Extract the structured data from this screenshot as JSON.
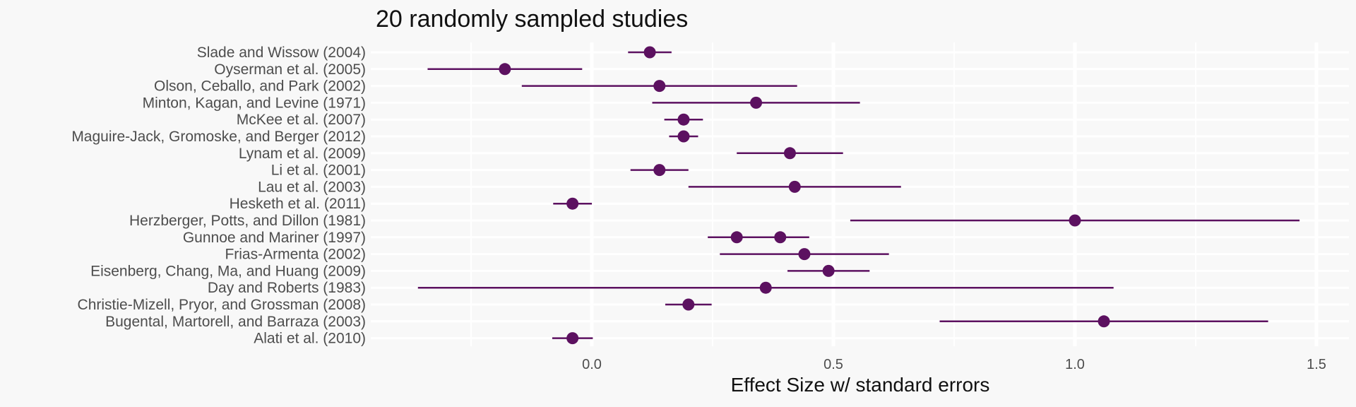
{
  "chart_data": {
    "type": "forest",
    "title": "20 randomly sampled studies",
    "xlabel": "Effect Size w/ standard errors",
    "ylabel": "",
    "xlim": [
      -0.47,
      1.57
    ],
    "xticks": [
      0.0,
      0.5,
      1.0,
      1.5
    ],
    "xtick_labels": [
      "0.0",
      "0.5",
      "1.0",
      "1.5"
    ],
    "grid": true,
    "color": "#5c1160",
    "studies": [
      {
        "label": "Slade and Wissow (2004)",
        "estimates": [
          {
            "value": 0.12,
            "low": 0.075,
            "high": 0.165
          }
        ]
      },
      {
        "label": "Oyserman et al. (2005)",
        "estimates": [
          {
            "value": -0.18,
            "low": -0.34,
            "high": -0.02
          }
        ]
      },
      {
        "label": "Olson, Ceballo, and Park (2002)",
        "estimates": [
          {
            "value": 0.14,
            "low": -0.145,
            "high": 0.425
          }
        ]
      },
      {
        "label": "Minton, Kagan, and Levine (1971)",
        "estimates": [
          {
            "value": 0.34,
            "low": 0.125,
            "high": 0.555
          }
        ]
      },
      {
        "label": "McKee et al. (2007)",
        "estimates": [
          {
            "value": 0.19,
            "low": 0.15,
            "high": 0.23
          }
        ]
      },
      {
        "label": "Maguire-Jack, Gromoske, and Berger (2012)",
        "estimates": [
          {
            "value": 0.19,
            "low": 0.16,
            "high": 0.22
          }
        ]
      },
      {
        "label": "Lynam et al. (2009)",
        "estimates": [
          {
            "value": 0.41,
            "low": 0.3,
            "high": 0.52
          }
        ]
      },
      {
        "label": "Li et al. (2001)",
        "estimates": [
          {
            "value": 0.14,
            "low": 0.08,
            "high": 0.2
          }
        ]
      },
      {
        "label": "Lau et al. (2003)",
        "estimates": [
          {
            "value": 0.42,
            "low": 0.2,
            "high": 0.64
          }
        ]
      },
      {
        "label": "Hesketh et al. (2011)",
        "estimates": [
          {
            "value": -0.04,
            "low": -0.08,
            "high": 0.0
          }
        ]
      },
      {
        "label": "Herzberger, Potts, and Dillon (1981)",
        "estimates": [
          {
            "value": 1.0,
            "low": 0.535,
            "high": 1.465
          }
        ]
      },
      {
        "label": "Gunnoe and Mariner (1997)",
        "estimates": [
          {
            "value": 0.3,
            "low": 0.24,
            "high": 0.36
          },
          {
            "value": 0.39,
            "low": 0.33,
            "high": 0.45
          }
        ]
      },
      {
        "label": "Frias-Armenta (2002)",
        "estimates": [
          {
            "value": 0.44,
            "low": 0.265,
            "high": 0.615
          }
        ]
      },
      {
        "label": "Eisenberg, Chang, Ma, and Huang (2009)",
        "estimates": [
          {
            "value": 0.49,
            "low": 0.405,
            "high": 0.575
          }
        ]
      },
      {
        "label": "Day and Roberts (1983)",
        "estimates": [
          {
            "value": 0.36,
            "low": -0.36,
            "high": 1.08
          }
        ]
      },
      {
        "label": "Christie-Mizell, Pryor, and Grossman (2008)",
        "estimates": [
          {
            "value": 0.2,
            "low": 0.152,
            "high": 0.248
          }
        ]
      },
      {
        "label": "Bugental, Martorell, and Barraza (2003)",
        "estimates": [
          {
            "value": 1.06,
            "low": 0.72,
            "high": 1.4
          }
        ]
      },
      {
        "label": "Alati et al. (2010)",
        "estimates": [
          {
            "value": -0.04,
            "low": -0.082,
            "high": 0.002
          }
        ]
      }
    ]
  }
}
